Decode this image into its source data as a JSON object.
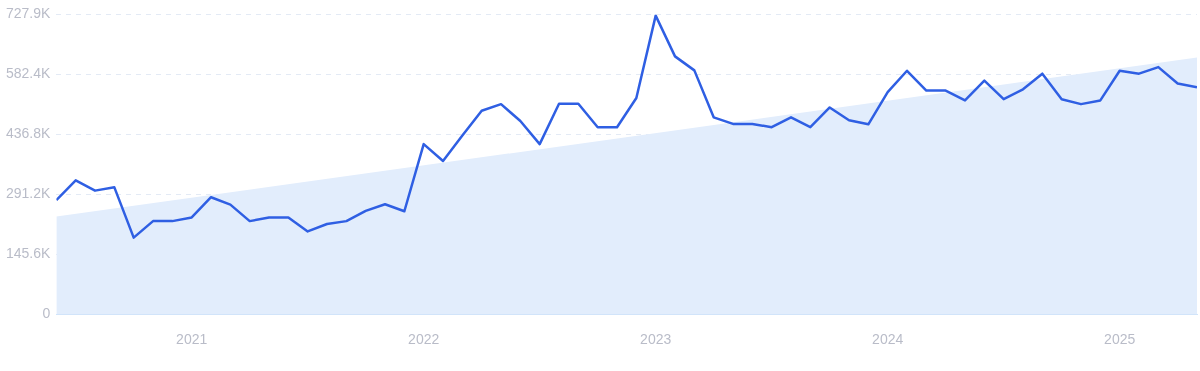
{
  "chart_data": {
    "type": "line",
    "x": [
      "2020-06",
      "2020-07",
      "2020-08",
      "2020-09",
      "2020-10",
      "2020-11",
      "2020-12",
      "2021-01",
      "2021-02",
      "2021-03",
      "2021-04",
      "2021-05",
      "2021-06",
      "2021-07",
      "2021-08",
      "2021-09",
      "2021-10",
      "2021-11",
      "2021-12",
      "2022-01",
      "2022-02",
      "2022-03",
      "2022-04",
      "2022-05",
      "2022-06",
      "2022-07",
      "2022-08",
      "2022-09",
      "2022-10",
      "2022-11",
      "2022-12",
      "2023-01",
      "2023-02",
      "2023-03",
      "2023-04",
      "2023-05",
      "2023-06",
      "2023-07",
      "2023-08",
      "2023-09",
      "2023-10",
      "2023-11",
      "2023-12",
      "2024-01",
      "2024-02",
      "2024-03",
      "2024-04",
      "2024-05",
      "2024-06",
      "2024-07",
      "2024-08",
      "2024-09",
      "2024-10",
      "2024-11",
      "2024-12",
      "2025-01",
      "2025-02",
      "2025-03",
      "2025-04",
      "2025-05"
    ],
    "series": [
      {
        "type": "area",
        "color": "#e2edfc",
        "x": [
          "2020-06",
          "2025-05"
        ],
        "values": [
          237,
          623
        ]
      },
      {
        "type": "line",
        "color": "#2f5fe3",
        "values": [
          277,
          325,
          300,
          308,
          186,
          226,
          226,
          235,
          284,
          266,
          226,
          235,
          235,
          201,
          219,
          226,
          251,
          267,
          250,
          413,
          372,
          434,
          494,
          510,
          469,
          413,
          511,
          511,
          454,
          454,
          525,
          725,
          626,
          592,
          478,
          462,
          462,
          454,
          478,
          454,
          502,
          471,
          461,
          539,
          591,
          543,
          543,
          519,
          567,
          522,
          546,
          584,
          522,
          510,
          519,
          591,
          584,
          600,
          560,
          551
        ]
      }
    ],
    "xlim": [
      "2020-06",
      "2025-05"
    ],
    "xticks": [
      "2021",
      "2022",
      "2023",
      "2024",
      "2025"
    ],
    "ylim": [
      0,
      727.9
    ],
    "yticks": [
      0,
      {
        "value": 145.6,
        "label": "145.6K"
      },
      {
        "value": 291.2,
        "label": "291.2K"
      },
      {
        "value": 436.8,
        "label": "436.8K"
      },
      {
        "value": 582.4,
        "label": "582.4K"
      },
      {
        "value": 727.9,
        "label": "727.9K"
      }
    ],
    "grid": "y",
    "legend": false,
    "marker": "none",
    "line_style": "solid"
  }
}
